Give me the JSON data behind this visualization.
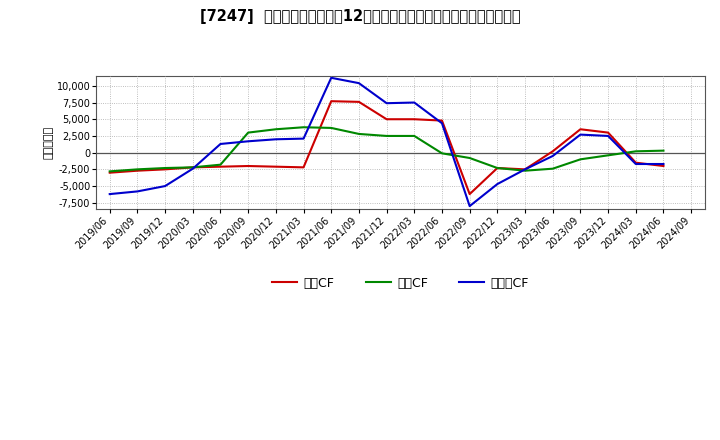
{
  "title": "[7247]  キャッシュフローの12か月移動合計の対前年同期増減額の推移",
  "ylabel": "（百万円）",
  "ylim": [
    -8500,
    11500
  ],
  "yticks": [
    -7500,
    -5000,
    -2500,
    0,
    2500,
    5000,
    7500,
    10000
  ],
  "background_color": "#ffffff",
  "plot_bg_color": "#ffffff",
  "grid_color": "#aaaaaa",
  "dates": [
    "2019/06",
    "2019/09",
    "2019/12",
    "2020/03",
    "2020/06",
    "2020/09",
    "2020/12",
    "2021/03",
    "2021/06",
    "2021/09",
    "2021/12",
    "2022/03",
    "2022/06",
    "2022/09",
    "2022/12",
    "2023/03",
    "2023/06",
    "2023/09",
    "2023/12",
    "2024/03",
    "2024/06"
  ],
  "xtick_labels": [
    "2019/06",
    "2019/09",
    "2019/12",
    "2020/03",
    "2020/06",
    "2020/09",
    "2020/12",
    "2021/03",
    "2021/06",
    "2021/09",
    "2021/12",
    "2022/03",
    "2022/06",
    "2022/09",
    "2022/12",
    "2023/03",
    "2023/06",
    "2023/09",
    "2023/12",
    "2024/03",
    "2024/06",
    "2024/09"
  ],
  "eigyo_cf": [
    -3000,
    -2700,
    -2500,
    -2200,
    -2100,
    -2000,
    -2100,
    -2200,
    7700,
    7600,
    5000,
    5000,
    4800,
    -6200,
    -2300,
    -2500,
    200,
    3500,
    3000,
    -1500,
    -2000
  ],
  "toshi_cf": [
    -2800,
    -2500,
    -2300,
    -2200,
    -1800,
    3000,
    3500,
    3800,
    3700,
    2800,
    2500,
    2500,
    -100,
    -800,
    -2300,
    -2700,
    -2400,
    -1000,
    -400,
    200,
    300
  ],
  "free_cf": [
    -6200,
    -5800,
    -5000,
    -2400,
    1300,
    1700,
    2000,
    2100,
    11200,
    10400,
    7400,
    7500,
    4400,
    -8000,
    -4700,
    -2500,
    -500,
    2700,
    2500,
    -1700,
    -1700
  ],
  "eigyo_color": "#cc0000",
  "toshi_color": "#008800",
  "free_color": "#0000cc",
  "legend_labels": [
    "営業CF",
    "投資CF",
    "フリーCF"
  ],
  "linewidth": 1.5
}
